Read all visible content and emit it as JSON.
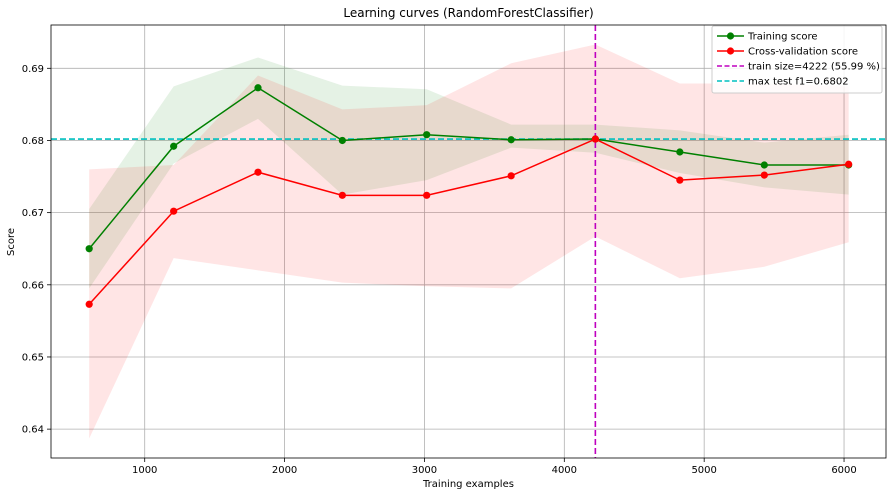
{
  "chart_data": {
    "type": "line",
    "title": "Learning curves (RandomForestClassifier)",
    "xlabel": "Training examples",
    "ylabel": "Score",
    "xlim": [
      330,
      6300
    ],
    "ylim": [
      0.636,
      0.696
    ],
    "grid": true,
    "legend_position": "top-right",
    "x_ticks": [
      1000,
      2000,
      3000,
      4000,
      5000,
      6000
    ],
    "x_tick_labels": [
      "1000",
      "2000",
      "3000",
      "4000",
      "5000",
      "6000"
    ],
    "y_ticks": [
      0.64,
      0.65,
      0.66,
      0.67,
      0.68,
      0.69
    ],
    "y_tick_labels": [
      "0.64",
      "0.65",
      "0.66",
      "0.67",
      "0.68",
      "0.69"
    ],
    "x": [
      603,
      1207,
      1810,
      2413,
      3016,
      3620,
      4222,
      4826,
      5430,
      6033
    ],
    "series": [
      {
        "name": "Training score",
        "color": "#008000",
        "marker": "circle",
        "values": [
          0.665,
          0.6792,
          0.6873,
          0.68,
          0.6808,
          0.6801,
          0.6802,
          0.6784,
          0.6766,
          0.6766
        ],
        "band_lower": [
          0.6595,
          0.6768,
          0.683,
          0.6725,
          0.6745,
          0.679,
          0.6783,
          0.6755,
          0.6735,
          0.6725
        ],
        "band_upper": [
          0.6705,
          0.6875,
          0.6915,
          0.6876,
          0.6871,
          0.6822,
          0.6822,
          0.6814,
          0.6797,
          0.6808
        ],
        "band_color": "#008000"
      },
      {
        "name": "Cross-validation score",
        "color": "#ff0000",
        "marker": "circle",
        "values": [
          0.6573,
          0.6702,
          0.6756,
          0.6724,
          0.6724,
          0.6751,
          0.6802,
          0.6745,
          0.6752,
          0.6767
        ],
        "band_lower": [
          0.6387,
          0.6637,
          0.662,
          0.6603,
          0.6598,
          0.6595,
          0.6667,
          0.6609,
          0.6625,
          0.6659
        ],
        "band_upper": [
          0.676,
          0.6766,
          0.689,
          0.6843,
          0.6849,
          0.6907,
          0.6933,
          0.6879,
          0.6879,
          0.6875
        ],
        "band_color": "#ff0000"
      }
    ],
    "vertical_line": {
      "name": "train size=4222 (55.99 %)",
      "x": 4222,
      "color": "#bf00bf",
      "style": "dashed"
    },
    "horizontal_line": {
      "name": "max test f1=0.6802",
      "y": 0.6802,
      "color": "#00bfbf",
      "style": "dashed"
    }
  }
}
